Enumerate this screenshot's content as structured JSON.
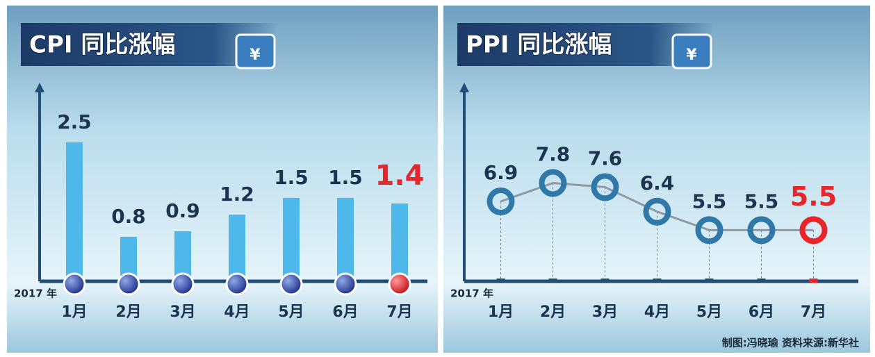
{
  "chart_data": [
    {
      "type": "bar",
      "title": "CPI 同比涨幅",
      "year_label": "2017 年",
      "categories": [
        "1月",
        "2月",
        "3月",
        "4月",
        "5月",
        "6月",
        "7月"
      ],
      "values": [
        2.5,
        0.8,
        0.9,
        1.2,
        1.5,
        1.5,
        1.4
      ],
      "color": "#4fb8ea",
      "highlight_color": "#e8262a",
      "ylim": [
        0,
        3.5
      ]
    },
    {
      "type": "line",
      "title": "PPI 同比涨幅",
      "year_label": "2017 年",
      "categories": [
        "1月",
        "2月",
        "3月",
        "4月",
        "5月",
        "6月",
        "7月"
      ],
      "values": [
        6.9,
        7.8,
        7.6,
        6.4,
        5.5,
        5.5,
        5.5
      ],
      "color": "#2f78a8",
      "highlight_color": "#e8262a",
      "ylim": [
        3,
        12.5
      ]
    }
  ],
  "credit": "制图:冯晓瑜 资料来源:新华社"
}
